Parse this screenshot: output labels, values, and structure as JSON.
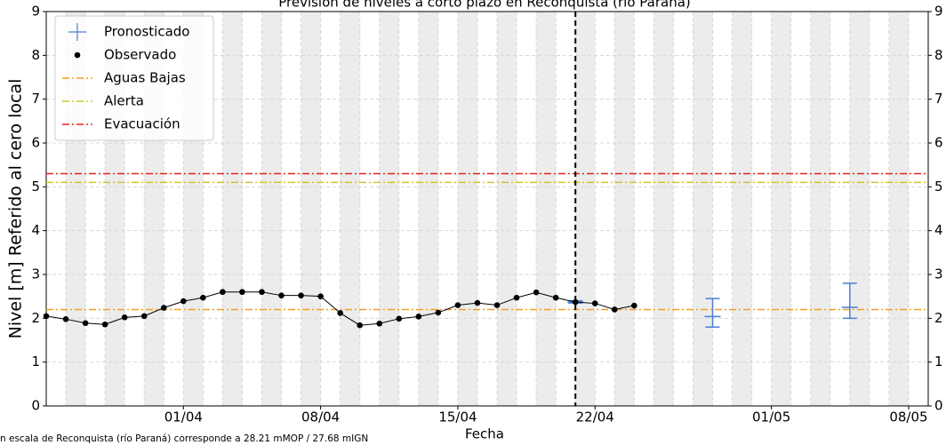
{
  "chart_data": {
    "type": "line",
    "title": "Previsión de niveles a corto plazo en Reconquista (río Paraná)",
    "xlabel": "Fecha",
    "ylabel": "Nivel [m] Referido al cero local",
    "note": "n escala de Reconquista (río Paraná) corresponde a 28.21 mMOP / 27.68 mIGN",
    "xlim": [
      "25/03",
      "09/05"
    ],
    "xticks": [
      "01/04",
      "08/04",
      "15/04",
      "22/04",
      "01/05",
      "08/05"
    ],
    "ylim": [
      0,
      9
    ],
    "yticks": [
      0,
      1,
      2,
      3,
      4,
      5,
      6,
      7,
      8,
      9
    ],
    "grid": true,
    "legend": "upper left",
    "vline": "21/04",
    "series": [
      {
        "name": "Pronosticado",
        "color": "#4a7fd6",
        "type": "errorbar",
        "x": [
          "21/04",
          "28/04",
          "05/05"
        ],
        "values": [
          2.37,
          2.04,
          2.25
        ],
        "lower": [
          2.35,
          1.8,
          2.0
        ],
        "upper": [
          2.4,
          2.45,
          2.8
        ]
      },
      {
        "name": "Observado",
        "color": "#000000",
        "type": "line",
        "x": [
          "25/03",
          "26/03",
          "27/03",
          "28/03",
          "29/03",
          "30/03",
          "31/03",
          "01/04",
          "02/04",
          "03/04",
          "04/04",
          "05/04",
          "06/04",
          "07/04",
          "08/04",
          "09/04",
          "10/04",
          "11/04",
          "12/04",
          "13/04",
          "14/04",
          "15/04",
          "16/04",
          "17/04",
          "18/04",
          "19/04",
          "20/04",
          "21/04",
          "22/04",
          "23/04",
          "24/04"
        ],
        "values": [
          2.05,
          1.98,
          1.89,
          1.86,
          2.02,
          2.05,
          2.24,
          2.39,
          2.47,
          2.6,
          2.6,
          2.6,
          2.52,
          2.52,
          2.5,
          2.12,
          1.84,
          1.88,
          1.99,
          2.04,
          2.13,
          2.3,
          2.35,
          2.3,
          2.47,
          2.59,
          2.47,
          2.37,
          2.34,
          2.2,
          2.29
        ]
      }
    ],
    "thresholds": [
      {
        "name": "Aguas Bajas",
        "value": 2.2,
        "color": "#f0a020"
      },
      {
        "name": "Alerta",
        "value": 5.1,
        "color": "#c8c828"
      },
      {
        "name": "Evacuación",
        "value": 5.3,
        "color": "#e8201c"
      }
    ]
  }
}
